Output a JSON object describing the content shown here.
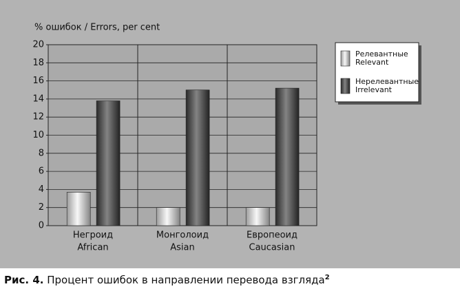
{
  "chart_data": {
    "type": "bar",
    "ylabel": "% ошибок / Errors, per cent",
    "categories": [
      [
        "Негроид",
        "African"
      ],
      [
        "Монголоид",
        "Asian"
      ],
      [
        "Европеоид",
        "Caucasian"
      ]
    ],
    "series": [
      {
        "name": [
          "Релевантные",
          "Relevant"
        ],
        "color": "#f2f2f2",
        "values": [
          3.7,
          2.0,
          2.0
        ]
      },
      {
        "name": [
          "Нерелевантные",
          "Irrelevant"
        ],
        "color": "#404040",
        "values": [
          13.8,
          15.0,
          15.2
        ]
      }
    ],
    "ylim": [
      0,
      20
    ],
    "yticks": [
      0,
      2,
      4,
      6,
      8,
      10,
      12,
      14,
      16,
      18,
      20
    ],
    "grid": true,
    "legend": "right"
  },
  "caption": {
    "label": "Рис. 4.",
    "text": "Процент ошибок в направлении перевода взгляда",
    "footnote": "2"
  }
}
